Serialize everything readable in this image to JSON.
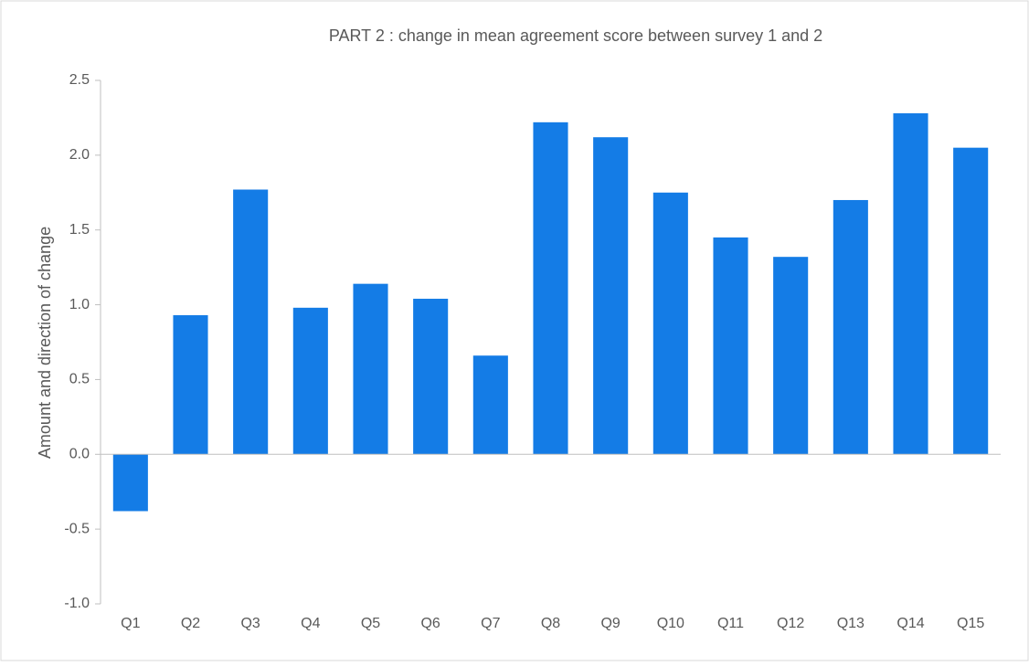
{
  "chart_data": {
    "type": "bar",
    "title": "PART 2 : change in mean agreement score between survey 1 and 2",
    "y_label": "Amount and direction of change",
    "categories": [
      "Q1",
      "Q2",
      "Q3",
      "Q4",
      "Q5",
      "Q6",
      "Q7",
      "Q8",
      "Q9",
      "Q10",
      "Q11",
      "Q12",
      "Q13",
      "Q14",
      "Q15"
    ],
    "values": [
      -0.38,
      0.93,
      1.77,
      0.98,
      1.14,
      1.04,
      0.66,
      2.22,
      2.12,
      1.75,
      1.45,
      1.32,
      1.7,
      2.28,
      2.05
    ],
    "color": "#147ce6",
    "ylim": [
      -1.0,
      2.5
    ],
    "yticks": [
      {
        "value": -1.0,
        "label": "-1.0"
      },
      {
        "value": -0.5,
        "label": "-0.5"
      },
      {
        "value": 0,
        "label": "0.0"
      },
      {
        "value": 0.5,
        "label": "0.5"
      },
      {
        "value": 1.0,
        "label": "1.0"
      },
      {
        "value": 1.5,
        "label": "1.5"
      },
      {
        "value": 2.0,
        "label": "2.0"
      },
      {
        "value": 2.5,
        "label": "2.5"
      }
    ],
    "grid": false
  }
}
